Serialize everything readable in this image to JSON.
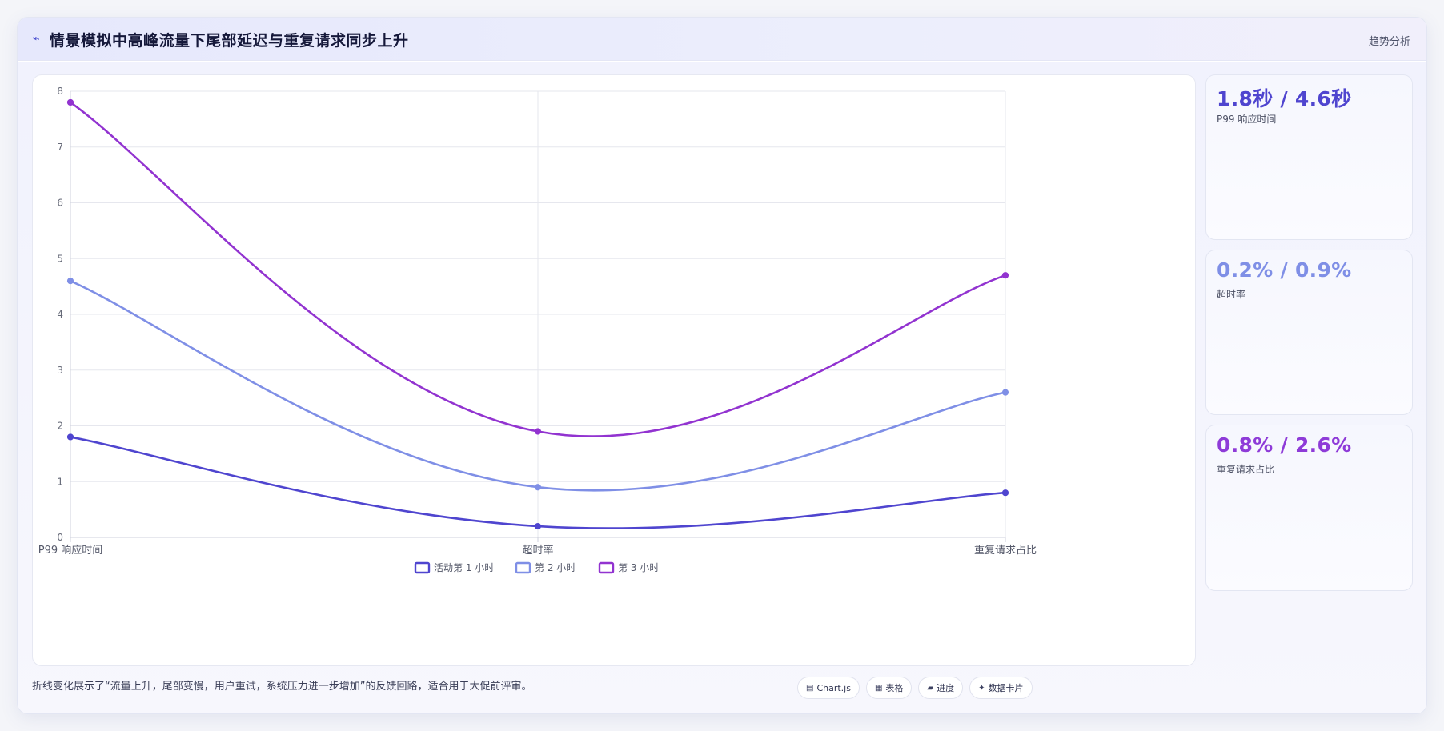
{
  "header": {
    "icon": "wave-icon",
    "title": "情景模拟中高峰流量下尾部延迟与重复请求同步上升",
    "action_label": "趋势分析"
  },
  "stats": [
    {
      "value": "1.8秒 / 4.6秒",
      "label": "P99 响应时间",
      "color": "#4f45cf"
    },
    {
      "value": "0.2% / 0.9%",
      "label": "超时率",
      "color": "#7f8fe6"
    },
    {
      "value": "0.8% / 2.6%",
      "label": "重复请求占比",
      "color": "#8e3bd8"
    }
  ],
  "footer": {
    "note": "折线变化展示了“流量上升，尾部变慢，用户重试，系统压力进一步增加”的反馈回路，适合用于大促前评审。",
    "chips": [
      {
        "icon": "monitor-icon",
        "glyph": "▤",
        "label": "Chart.js"
      },
      {
        "icon": "table-icon",
        "glyph": "▦",
        "label": "表格"
      },
      {
        "icon": "progress-icon",
        "glyph": "▰",
        "label": "进度"
      },
      {
        "icon": "sparkle-icon",
        "glyph": "✦",
        "label": "数据卡片"
      }
    ]
  },
  "chart_data": {
    "type": "line",
    "categories": [
      "P99 响应时间",
      "超时率",
      "重复请求占比"
    ],
    "ylim": [
      0,
      8
    ],
    "yticks": [
      "0",
      "1",
      "2",
      "3",
      "4",
      "5",
      "6",
      "7",
      "8"
    ],
    "grid": true,
    "legend_position": "bottom",
    "series": [
      {
        "name": "活动第 1 小时",
        "values": [
          1.8,
          0.2,
          0.8
        ],
        "color": "#4f45cf"
      },
      {
        "name": "第 2 小时",
        "values": [
          4.6,
          0.9,
          2.6
        ],
        "color": "#7f8fe6"
      },
      {
        "name": "第 3 小时",
        "values": [
          7.8,
          1.9,
          4.7
        ],
        "color": "#9233d0"
      }
    ]
  }
}
